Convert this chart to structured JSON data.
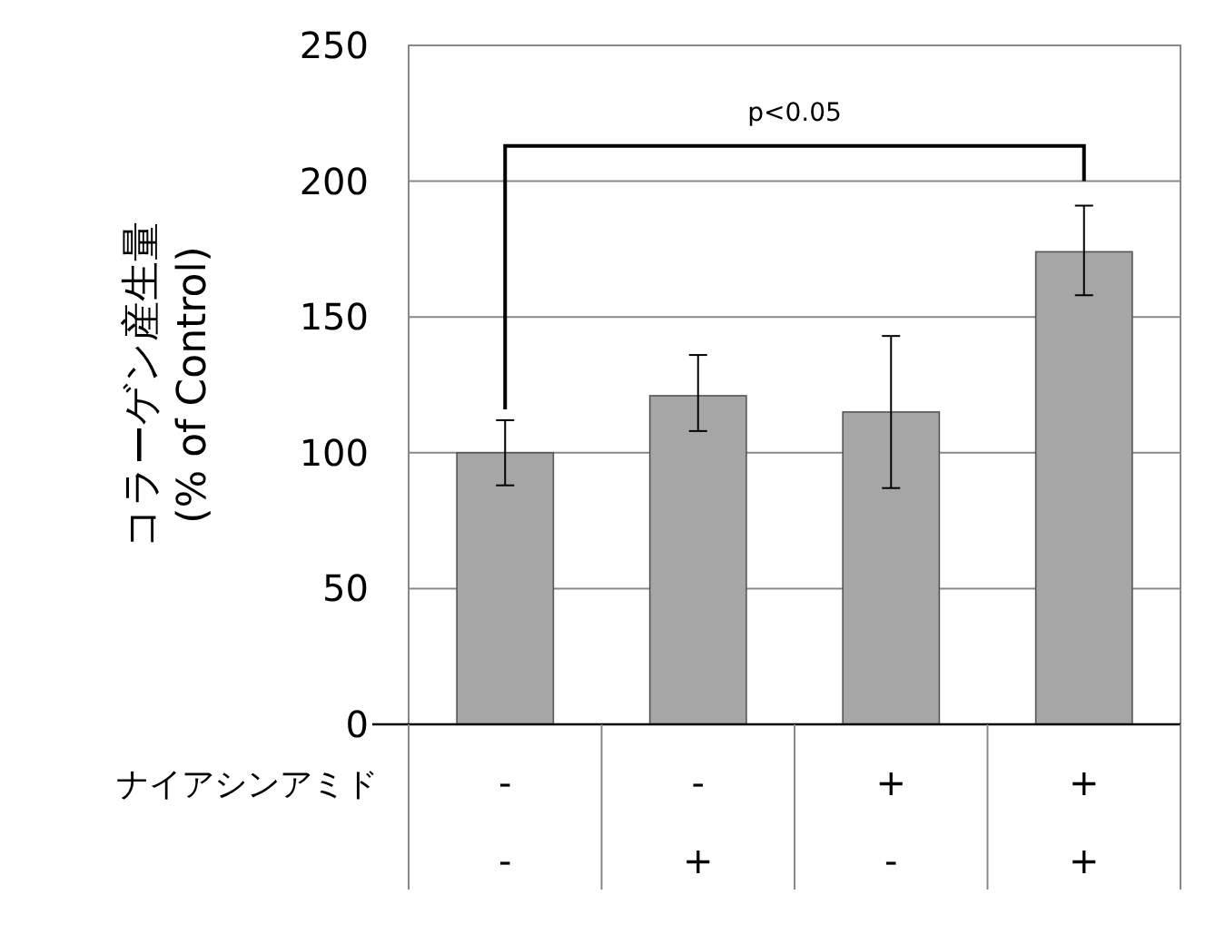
{
  "chart_data": {
    "type": "bar",
    "ylabel": "コラーゲン産生量\n(% of Control)",
    "categories": [
      "-\n-",
      "-\n+",
      "+\n-",
      "+\n+"
    ],
    "values": [
      100,
      121,
      115,
      174
    ],
    "errors": [
      [
        88,
        112
      ],
      [
        108,
        136
      ],
      [
        87,
        143
      ],
      [
        158,
        191
      ]
    ],
    "color": "#a6a6a6",
    "ylim": [
      0,
      250
    ],
    "yticks": [
      0,
      50,
      100,
      150,
      200,
      250
    ],
    "grid": "y",
    "annotations": [
      "p<0.05",
      "ナイアシンアミド"
    ]
  }
}
